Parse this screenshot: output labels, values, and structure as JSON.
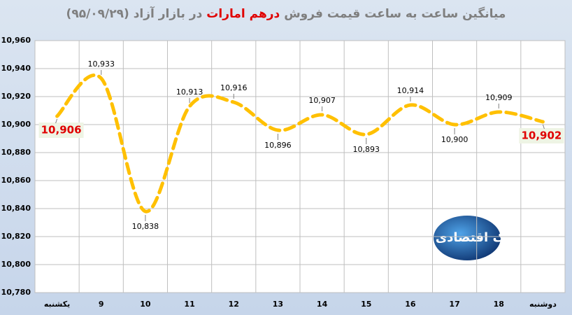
{
  "chart_data": {
    "type": "line",
    "title_parts": [
      "میانگین ساعت به ساعت قیمت فروش",
      "درهم امارات",
      "در بازار آزاد (۹۵/۰۹/۲۹)"
    ],
    "title_highlight_color": "#e00000",
    "categories": [
      "یکشنبه",
      "9",
      "10",
      "11",
      "12",
      "13",
      "14",
      "15",
      "16",
      "17",
      "18",
      "دوشنبه"
    ],
    "series": [
      {
        "color": "#ffc000",
        "values": [
          10906,
          10933,
          10838,
          10913,
          10916,
          10896,
          10907,
          10893,
          10914,
          10900,
          10909,
          10902
        ],
        "value_labels": [
          "10,906",
          "10,933",
          "10,838",
          "10,913",
          "10,916",
          "10,896",
          "10,907",
          "10,893",
          "10,914",
          "10,900",
          "10,909",
          "10,902"
        ]
      }
    ],
    "ylim": [
      10780,
      10960
    ],
    "yticks": [
      {
        "value": 10780,
        "label": "10,780"
      },
      {
        "value": 10800,
        "label": "10,800"
      },
      {
        "value": 10820,
        "label": "10,820"
      },
      {
        "value": 10840,
        "label": "10,840"
      },
      {
        "value": 10860,
        "label": "10,860"
      },
      {
        "value": 10880,
        "label": "10,880"
      },
      {
        "value": 10900,
        "label": "10,900"
      },
      {
        "value": 10920,
        "label": "10,920"
      },
      {
        "value": 10940,
        "label": "10,940"
      },
      {
        "value": 10960,
        "label": "10,960"
      }
    ],
    "grid": true,
    "watermark": "تابناک اقتصادی"
  }
}
